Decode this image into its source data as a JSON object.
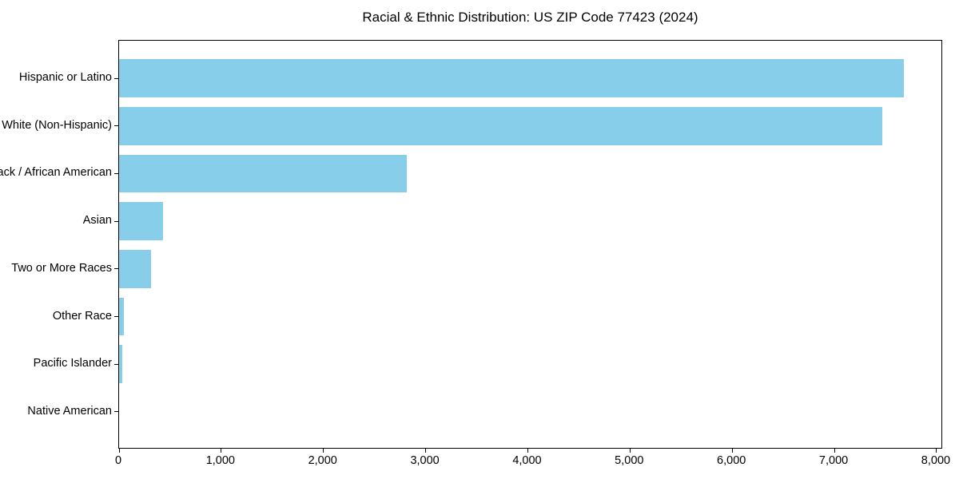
{
  "chart_data": {
    "type": "bar",
    "orientation": "horizontal",
    "title": "Racial & Ethnic Distribution: US ZIP Code 77423 (2024)",
    "categories": [
      "Hispanic or Latino",
      "White (Non-Hispanic)",
      "Black / African American",
      "Asian",
      "Two or More Races",
      "Other Race",
      "Pacific Islander",
      "Native American"
    ],
    "values": [
      7680,
      7465,
      2815,
      430,
      315,
      50,
      30,
      0
    ],
    "xlabel": "",
    "ylabel": "",
    "xlim": [
      0,
      8063
    ],
    "xticks": [
      0,
      1000,
      2000,
      3000,
      4000,
      5000,
      6000,
      7000,
      8000
    ],
    "xtick_labels": [
      "0",
      "1,000",
      "2,000",
      "3,000",
      "4,000",
      "5,000",
      "6,000",
      "7,000",
      "8,000"
    ],
    "bar_color": "#87CEEB",
    "frame_color": "#000000",
    "grid": false,
    "legend": null
  }
}
